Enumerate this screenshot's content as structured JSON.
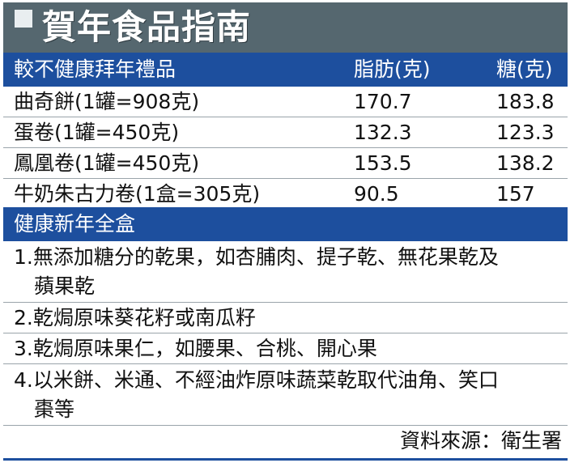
{
  "title": "賀年食品指南",
  "unhealthy": {
    "header": {
      "name": "較不健康拜年禮品",
      "fat": "脂肪(克)",
      "sugar": "糖(克)"
    },
    "rows": [
      {
        "name": "曲奇餅(1罐=908克)",
        "fat": "170.7",
        "sugar": "183.8"
      },
      {
        "name": "蛋卷(1罐=450克)",
        "fat": "132.3",
        "sugar": "123.3"
      },
      {
        "name": "鳳凰卷(1罐=450克)",
        "fat": "153.5",
        "sugar": "138.2"
      },
      {
        "name": "牛奶朱古力卷(1盒=305克)",
        "fat": "90.5",
        "sugar": "157"
      }
    ]
  },
  "healthy": {
    "header": "健康新年全盒",
    "items": [
      {
        "line1": "1.無添加糖分的乾果，如杏脯肉、提子乾、無花果乾及",
        "line2": "蘋果乾"
      },
      {
        "line1": "2.乾焗原味葵花籽或南瓜籽"
      },
      {
        "line1": "3.乾焗原味果仁，如腰果、合桃、開心果"
      },
      {
        "line1": "4.以米餅、米通、不經油炸原味蔬菜乾取代油角、笑口",
        "line2": "棗等"
      }
    ]
  },
  "source": "資料來源：衛生署"
}
